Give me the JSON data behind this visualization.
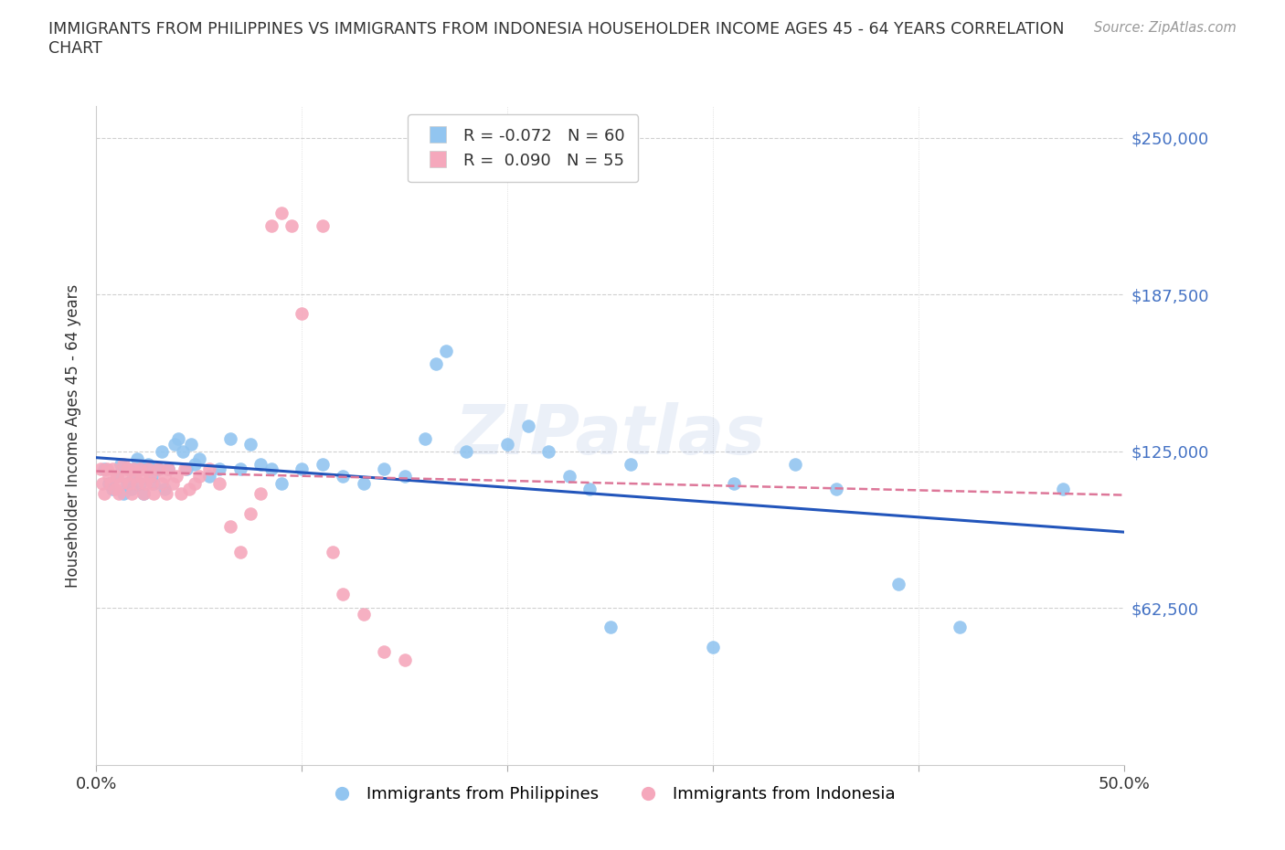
{
  "title_line1": "IMMIGRANTS FROM PHILIPPINES VS IMMIGRANTS FROM INDONESIA HOUSEHOLDER INCOME AGES 45 - 64 YEARS CORRELATION",
  "title_line2": "CHART",
  "source": "Source: ZipAtlas.com",
  "ylabel": "Householder Income Ages 45 - 64 years",
  "xlim": [
    0.0,
    0.5
  ],
  "ylim": [
    0,
    262500
  ],
  "yticks": [
    0,
    62500,
    125000,
    187500,
    250000
  ],
  "ytick_labels": [
    "",
    "$62,500",
    "$125,000",
    "$187,500",
    "$250,000"
  ],
  "xticks": [
    0.0,
    0.1,
    0.2,
    0.3,
    0.4,
    0.5
  ],
  "xtick_labels": [
    "0.0%",
    "",
    "",
    "",
    "",
    "50.0%"
  ],
  "philippines_color": "#92C5F0",
  "indonesia_color": "#F5A8BC",
  "philippines_line_color": "#2255BB",
  "indonesia_line_color": "#DD7799",
  "R_philippines": -0.072,
  "N_philippines": 60,
  "R_indonesia": 0.09,
  "N_indonesia": 55,
  "philippines_x": [
    0.004,
    0.006,
    0.008,
    0.01,
    0.012,
    0.013,
    0.015,
    0.016,
    0.017,
    0.018,
    0.02,
    0.021,
    0.022,
    0.023,
    0.025,
    0.027,
    0.028,
    0.03,
    0.032,
    0.033,
    0.035,
    0.038,
    0.04,
    0.042,
    0.044,
    0.046,
    0.048,
    0.05,
    0.055,
    0.06,
    0.065,
    0.07,
    0.075,
    0.08,
    0.085,
    0.09,
    0.1,
    0.11,
    0.12,
    0.13,
    0.14,
    0.15,
    0.16,
    0.165,
    0.17,
    0.18,
    0.2,
    0.21,
    0.22,
    0.23,
    0.24,
    0.25,
    0.26,
    0.3,
    0.31,
    0.34,
    0.36,
    0.39,
    0.42,
    0.47
  ],
  "philippines_y": [
    118000,
    112000,
    110000,
    115000,
    120000,
    108000,
    112000,
    118000,
    110000,
    115000,
    122000,
    112000,
    118000,
    108000,
    120000,
    115000,
    112000,
    118000,
    125000,
    110000,
    118000,
    128000,
    130000,
    125000,
    118000,
    128000,
    120000,
    122000,
    115000,
    118000,
    130000,
    118000,
    128000,
    120000,
    118000,
    112000,
    118000,
    120000,
    115000,
    112000,
    118000,
    115000,
    130000,
    160000,
    165000,
    125000,
    128000,
    135000,
    125000,
    115000,
    110000,
    55000,
    120000,
    47000,
    112000,
    120000,
    110000,
    72000,
    55000,
    110000
  ],
  "indonesia_x": [
    0.002,
    0.003,
    0.004,
    0.005,
    0.006,
    0.007,
    0.008,
    0.009,
    0.01,
    0.011,
    0.012,
    0.013,
    0.014,
    0.015,
    0.016,
    0.017,
    0.018,
    0.019,
    0.02,
    0.021,
    0.022,
    0.023,
    0.024,
    0.025,
    0.026,
    0.027,
    0.028,
    0.03,
    0.032,
    0.033,
    0.034,
    0.035,
    0.037,
    0.039,
    0.041,
    0.043,
    0.045,
    0.048,
    0.05,
    0.055,
    0.06,
    0.065,
    0.07,
    0.075,
    0.08,
    0.085,
    0.09,
    0.095,
    0.1,
    0.11,
    0.115,
    0.12,
    0.13,
    0.14,
    0.15
  ],
  "indonesia_y": [
    118000,
    112000,
    108000,
    118000,
    115000,
    112000,
    118000,
    110000,
    115000,
    108000,
    112000,
    120000,
    115000,
    118000,
    112000,
    108000,
    118000,
    115000,
    112000,
    118000,
    115000,
    108000,
    112000,
    118000,
    115000,
    112000,
    108000,
    118000,
    112000,
    115000,
    108000,
    118000,
    112000,
    115000,
    108000,
    118000,
    110000,
    112000,
    115000,
    118000,
    112000,
    95000,
    85000,
    100000,
    108000,
    215000,
    220000,
    215000,
    180000,
    215000,
    85000,
    68000,
    60000,
    45000,
    42000
  ],
  "watermark": "ZIPatlas",
  "background_color": "#ffffff",
  "grid_color": "#d0d0d0"
}
